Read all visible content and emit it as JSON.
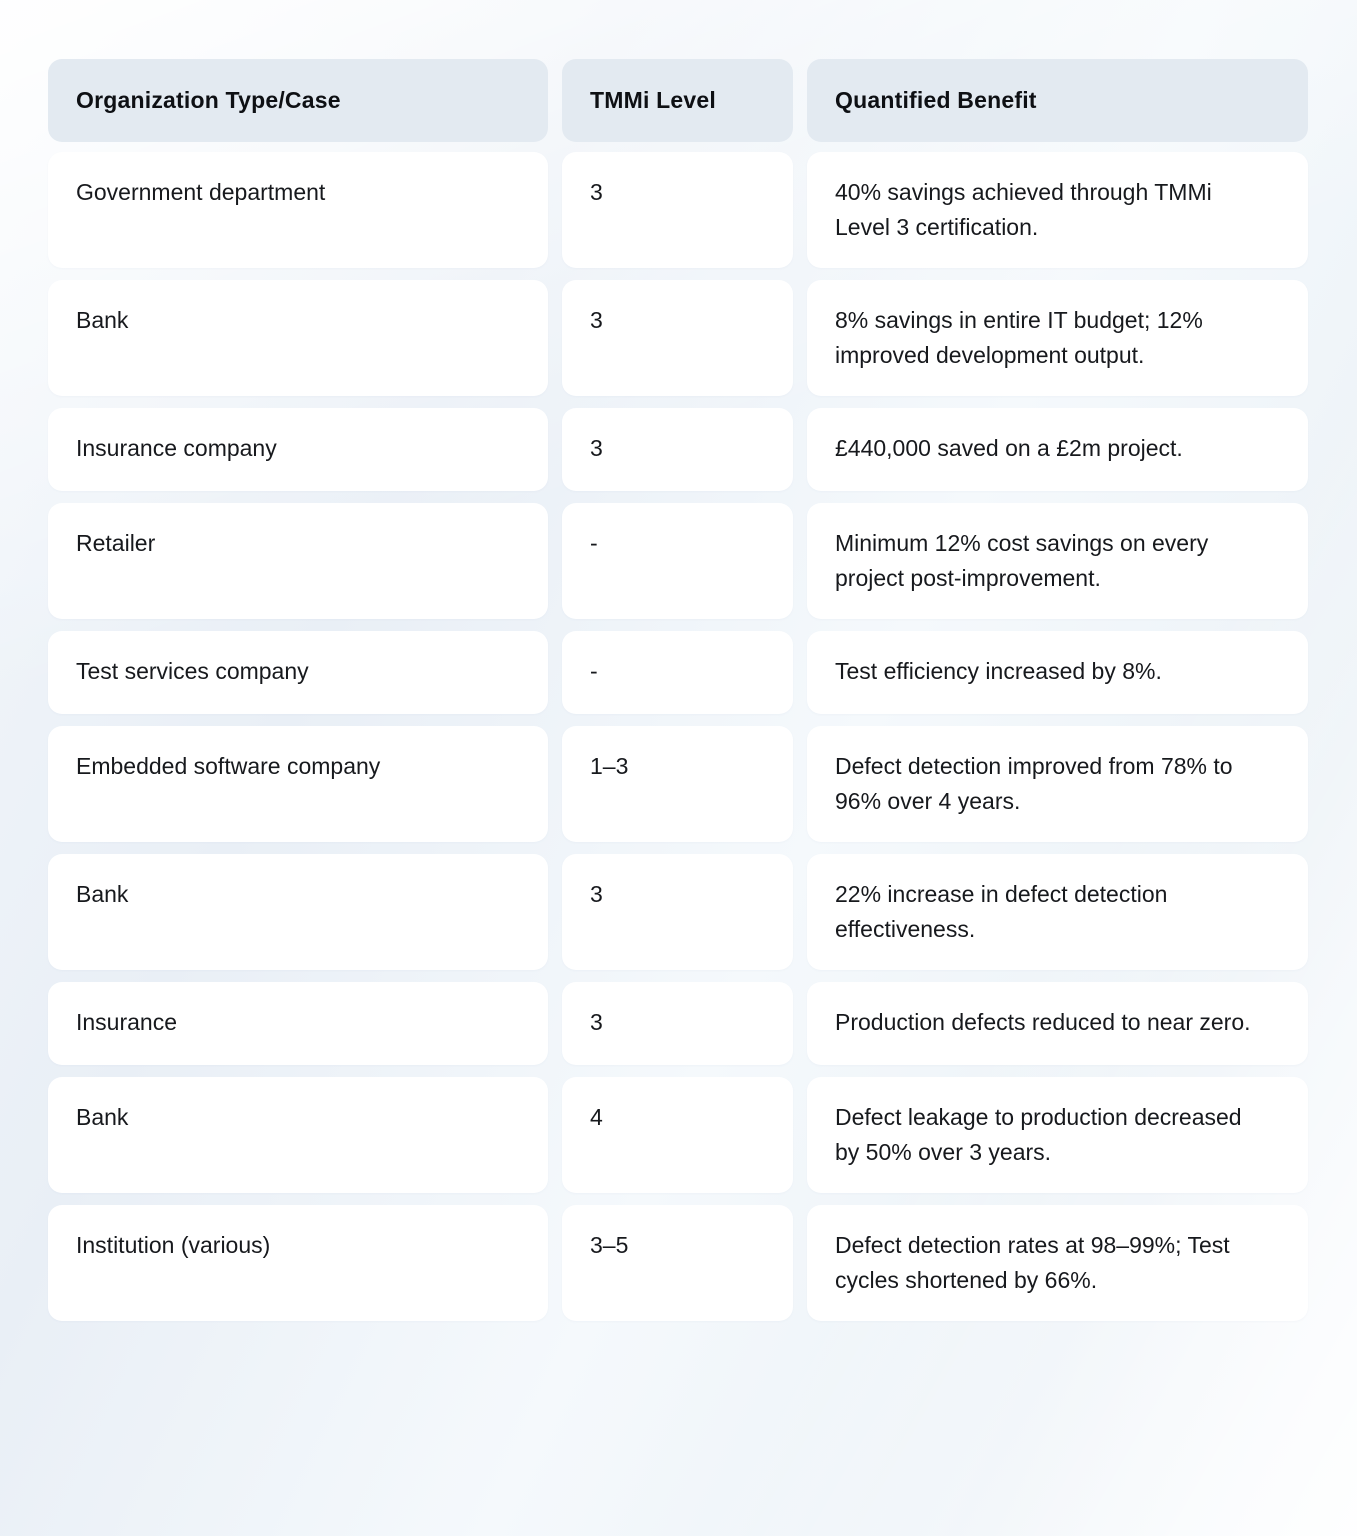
{
  "table": {
    "columns": [
      {
        "label": "Organization Type/Case"
      },
      {
        "label": "TMMi Level"
      },
      {
        "label": "Quantified Benefit"
      }
    ],
    "rows": [
      {
        "org": "Government department",
        "level": "3",
        "benefit": "40% savings achieved through TMMi Level 3 certification."
      },
      {
        "org": "Bank",
        "level": "3",
        "benefit": "8% savings in entire IT budget; 12% improved development output."
      },
      {
        "org": "Insurance company",
        "level": "3",
        "benefit": "£440,000 saved on a £2m project."
      },
      {
        "org": "Retailer",
        "level": "-",
        "benefit": "Minimum 12% cost savings on every project post-improvement."
      },
      {
        "org": "Test services company",
        "level": "-",
        "benefit": "Test efficiency increased by 8%."
      },
      {
        "org": "Embedded software company",
        "level": "1–3",
        "benefit": "Defect detection improved from 78% to 96% over 4 years."
      },
      {
        "org": "Bank",
        "level": "3",
        "benefit": "22% increase in defect detection effectiveness."
      },
      {
        "org": "Insurance",
        "level": "3",
        "benefit": "Production defects reduced to near zero."
      },
      {
        "org": "Bank",
        "level": "4",
        "benefit": "Defect leakage to production decreased by 50% over 3 years."
      },
      {
        "org": "Institution (various)",
        "level": "3–5",
        "benefit": "Defect detection rates at 98–99%; Test cycles shortened by 66%."
      }
    ]
  },
  "colors": {
    "header_bg": "#e3eaf1",
    "cell_bg": "#ffffff",
    "page_bg": "#eef3f8",
    "text": "#17191d"
  }
}
